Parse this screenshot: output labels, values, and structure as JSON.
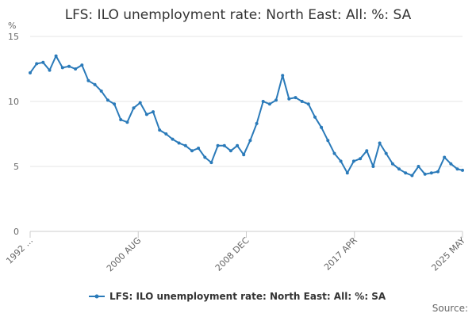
{
  "chart_data": {
    "type": "line",
    "title": "LFS: ILO unemployment rate: North East: All: %: SA",
    "y_unit": "%",
    "ylim": [
      0,
      15
    ],
    "y_ticks": [
      "0",
      "5",
      "10",
      "15"
    ],
    "x_tick_labels": [
      "1992 ...",
      "2000 AUG",
      "2008 DEC",
      "2017 APR",
      "2025 MAY"
    ],
    "grid": "horizontal",
    "legend_position": "bottom",
    "source_label": "Source:",
    "line_color": "#2a7ab9",
    "series": [
      {
        "name": "LFS: ILO unemployment rate: North East: All: %: SA",
        "x": [
          "1992",
          "1992.5",
          "1993",
          "1993.5",
          "1994",
          "1994.5",
          "1995",
          "1995.5",
          "1996",
          "1996.5",
          "1997",
          "1997.5",
          "1998",
          "1998.5",
          "1999",
          "1999.5",
          "2000",
          "2000.5",
          "2001",
          "2001.5",
          "2002",
          "2002.5",
          "2003",
          "2003.5",
          "2004",
          "2004.5",
          "2005",
          "2005.5",
          "2006",
          "2006.5",
          "2007",
          "2007.5",
          "2008",
          "2008.5",
          "2009",
          "2009.5",
          "2010",
          "2010.5",
          "2011",
          "2011.5",
          "2012",
          "2012.5",
          "2013",
          "2013.5",
          "2014",
          "2014.5",
          "2015",
          "2015.5",
          "2016",
          "2016.5",
          "2017",
          "2017.5",
          "2018",
          "2018.5",
          "2019",
          "2019.5",
          "2020",
          "2020.5",
          "2021",
          "2021.5",
          "2022",
          "2022.5",
          "2023",
          "2023.5",
          "2024",
          "2024.5",
          "2025",
          "2025.4"
        ],
        "values": [
          12.2,
          12.9,
          13.0,
          12.4,
          13.5,
          12.6,
          12.7,
          12.5,
          12.8,
          11.6,
          11.3,
          10.8,
          10.1,
          9.8,
          8.6,
          8.4,
          9.5,
          9.9,
          9.0,
          9.2,
          7.8,
          7.5,
          7.1,
          6.8,
          6.6,
          6.2,
          6.4,
          5.7,
          5.3,
          6.6,
          6.6,
          6.2,
          6.6,
          5.9,
          7.0,
          8.3,
          10.0,
          9.8,
          10.1,
          12.0,
          10.2,
          10.3,
          10.0,
          9.8,
          8.8,
          8.0,
          7.0,
          6.0,
          5.4,
          4.5,
          5.4,
          5.6,
          6.2,
          5.0,
          6.8,
          6.0,
          5.2,
          4.8,
          4.5,
          4.3,
          5.0,
          4.4,
          4.5,
          4.6,
          5.7,
          5.2,
          4.8,
          4.7
        ]
      }
    ]
  }
}
